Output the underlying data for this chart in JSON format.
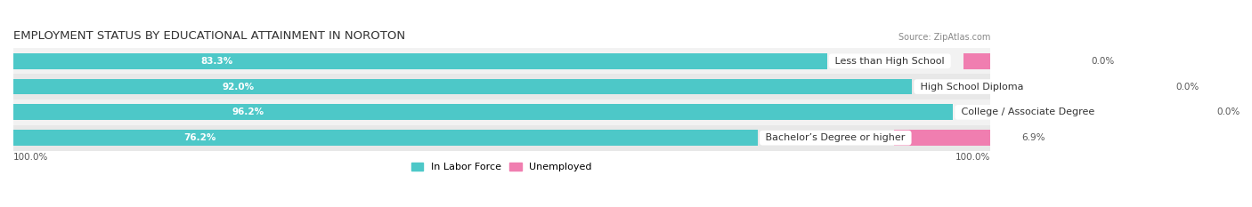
{
  "title": "EMPLOYMENT STATUS BY EDUCATIONAL ATTAINMENT IN NOROTON",
  "source": "Source: ZipAtlas.com",
  "categories": [
    "Less than High School",
    "High School Diploma",
    "College / Associate Degree",
    "Bachelor’s Degree or higher"
  ],
  "in_labor_force": [
    83.3,
    92.0,
    96.2,
    76.2
  ],
  "unemployed": [
    0.0,
    0.0,
    0.0,
    6.9
  ],
  "labor_color": "#4DC8C8",
  "unemployed_color": "#F07EB0",
  "row_bg_even": "#F2F2F2",
  "row_bg_odd": "#E8E8E8",
  "label_bg_color": "#FFFFFF",
  "title_fontsize": 9.5,
  "source_fontsize": 7,
  "bar_label_fontsize": 7.5,
  "category_fontsize": 8,
  "legend_fontsize": 8,
  "axis_label_fontsize": 7.5,
  "left_axis_label": "100.0%",
  "right_axis_label": "100.0%",
  "legend_labels": [
    "In Labor Force",
    "Unemployed"
  ],
  "total_width": 100,
  "unemp_bar_width": 12
}
